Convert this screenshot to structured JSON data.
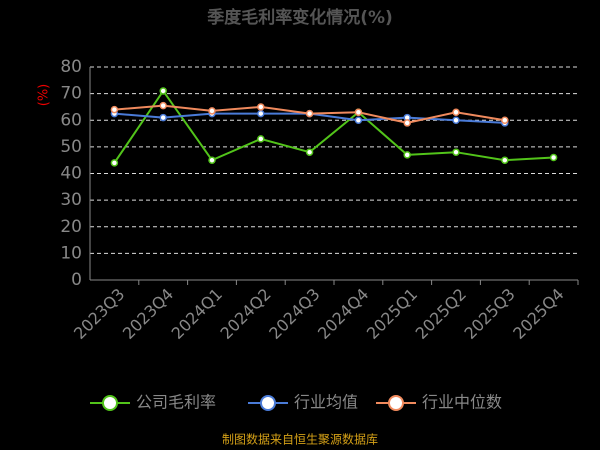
{
  "chart_data": {
    "type": "line",
    "title": "季度毛利率变化情况(%)",
    "y_label": "(%)",
    "categories": [
      "2023Q3",
      "2023Q4",
      "2024Q1",
      "2024Q2",
      "2024Q3",
      "2024Q4",
      "2025Q1",
      "2025Q2",
      "2025Q3",
      "2025Q4"
    ],
    "series": [
      {
        "name": "公司毛利率",
        "color": "#52c41a",
        "values": [
          44,
          71,
          45,
          53,
          48,
          63,
          47,
          48,
          45,
          46
        ]
      },
      {
        "name": "行业均值",
        "color": "#4a7bd8",
        "values": [
          62.5,
          61,
          62.5,
          62.5,
          62.5,
          60,
          61,
          60,
          59,
          null
        ]
      },
      {
        "name": "行业中位数",
        "color": "#f08a5d",
        "values": [
          64,
          65.5,
          63.5,
          65,
          62.5,
          63,
          59,
          63,
          60,
          null
        ]
      }
    ],
    "ylim": [
      0,
      80
    ],
    "yticks": [
      0,
      10,
      20,
      30,
      40,
      50,
      60,
      70,
      80
    ],
    "grid": true,
    "source": "制图数据来自恒生聚源数据库"
  }
}
